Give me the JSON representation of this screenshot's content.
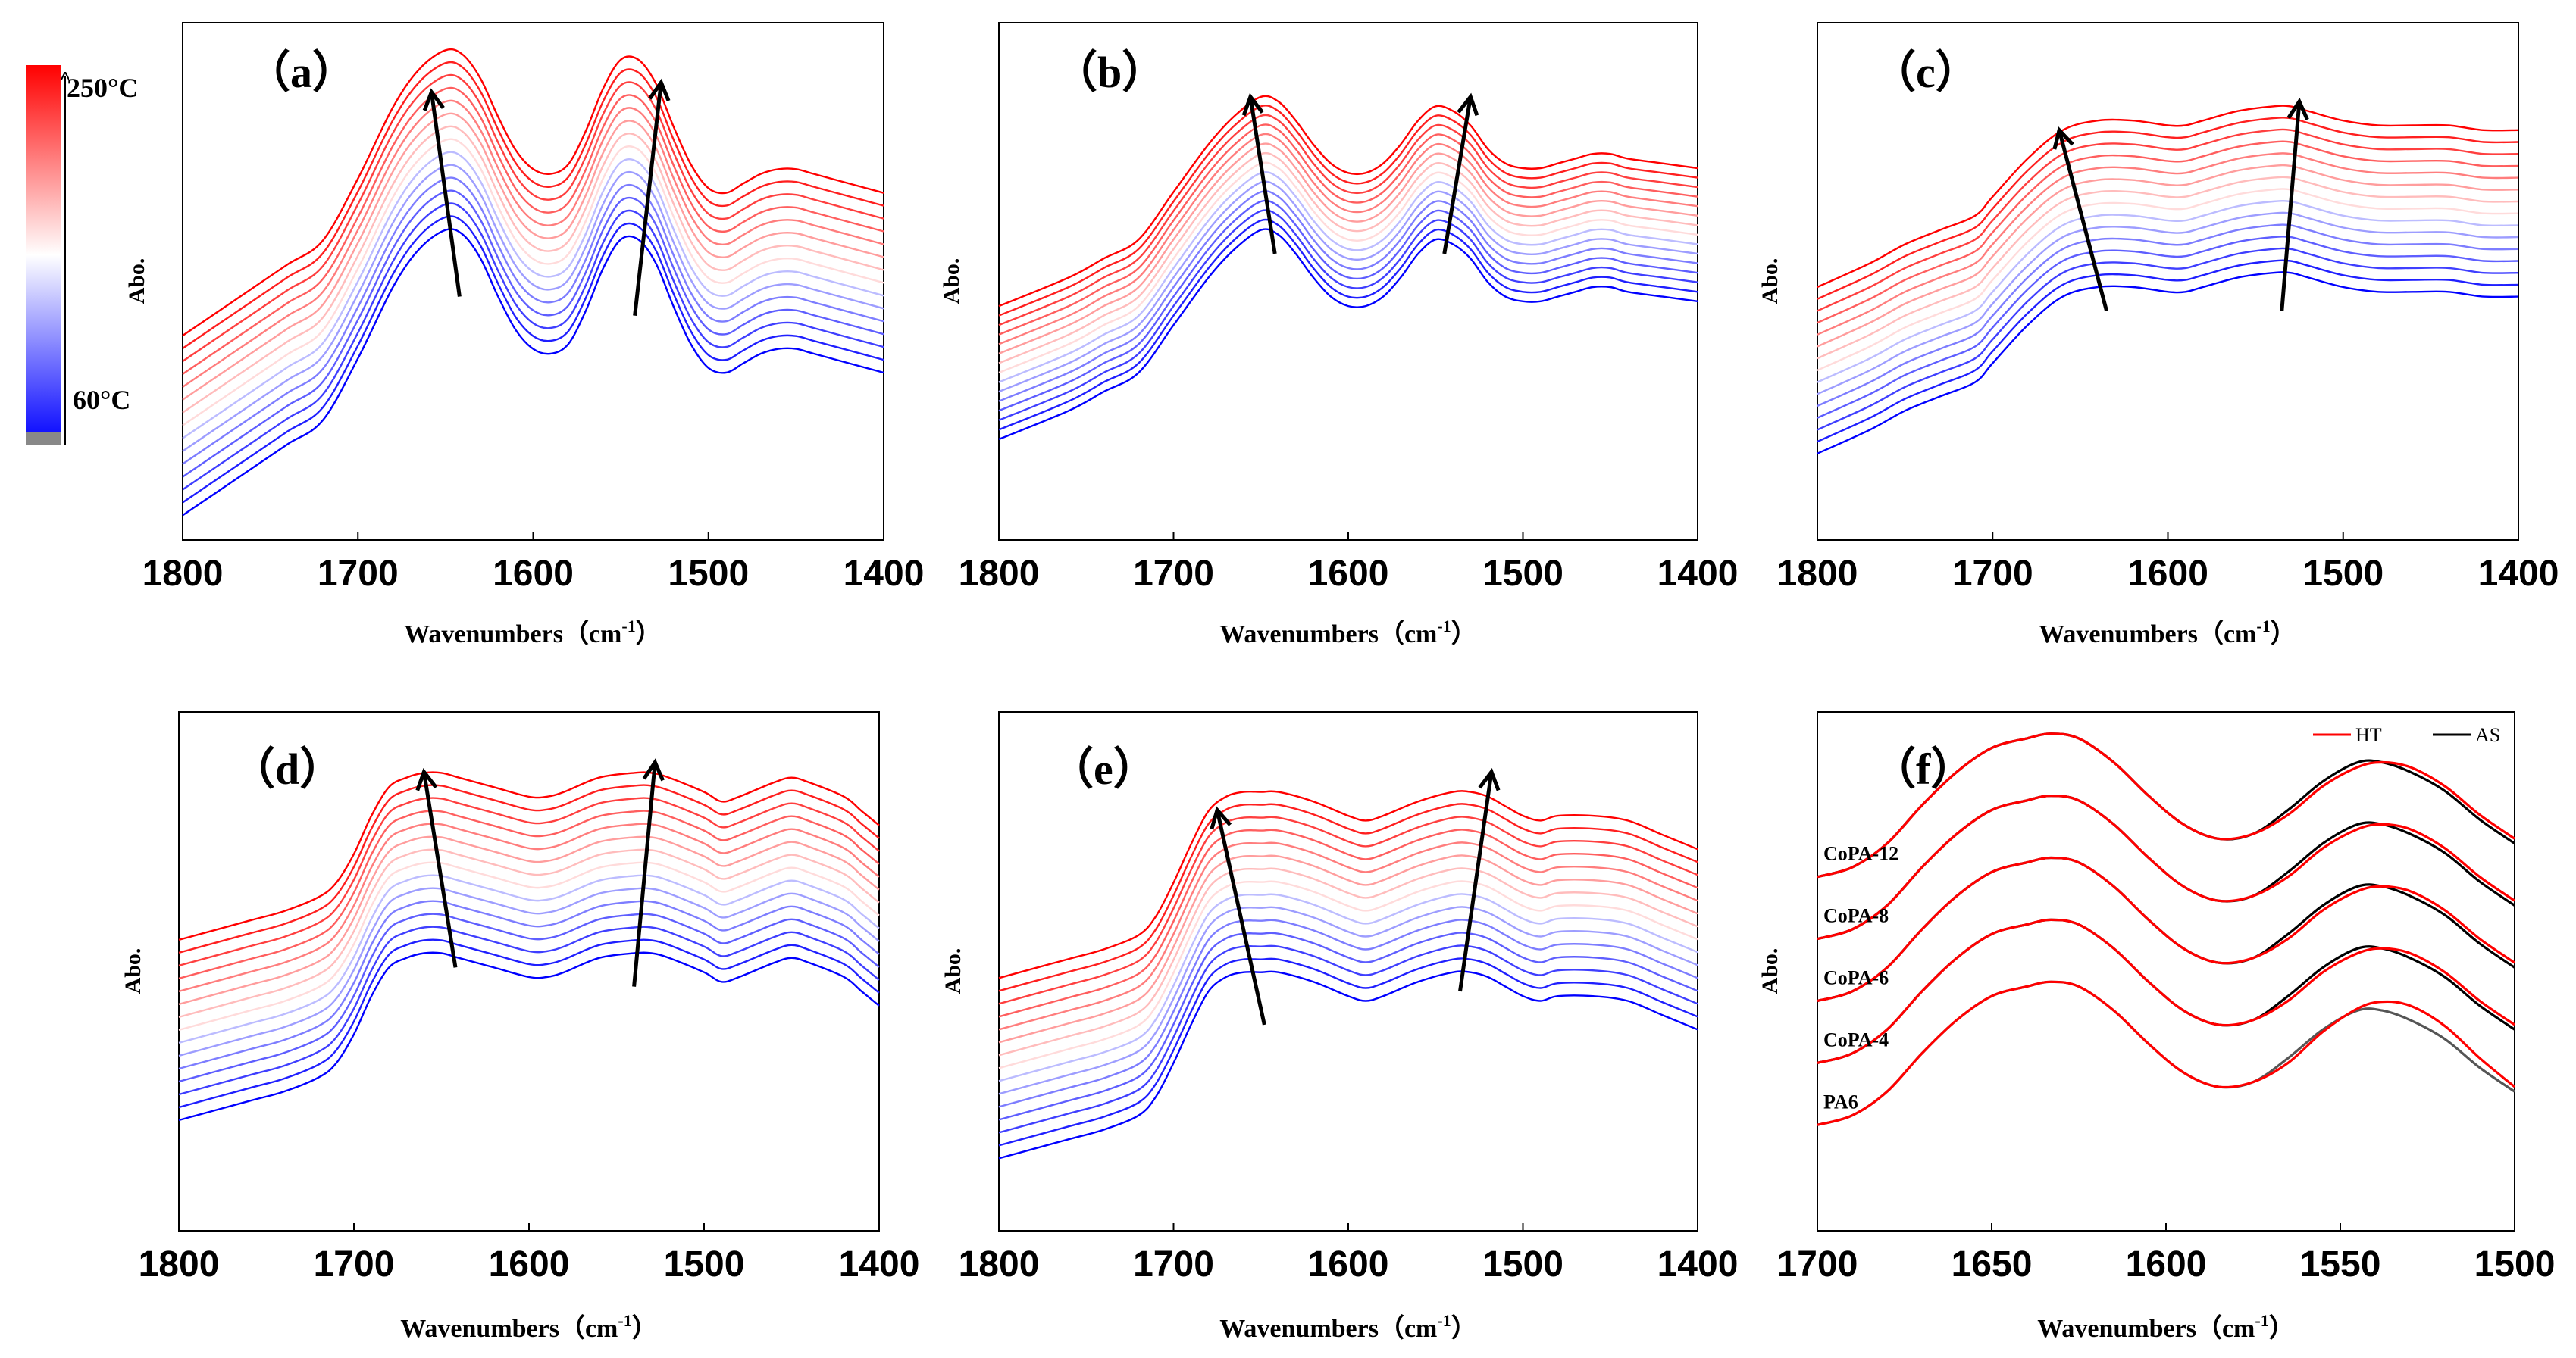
{
  "figure": {
    "colorbar": {
      "top_label": "250°C",
      "bottom_label": "60°C",
      "top_color": "#ff0000",
      "mid_color": "#ffffff",
      "bottom_color": "#0000ff"
    }
  },
  "chart_data": [
    {
      "panel": "a",
      "panel_label": "（a）",
      "type": "line",
      "xlabel": "Wavenumbers（cm",
      "xlabel_sup": "-1",
      "xlabel_end": "）",
      "ylabel": "Abo.",
      "xlim": [
        1800,
        1400
      ],
      "ylim": [
        0,
        1
      ],
      "xticks": [
        1800,
        1700,
        1600,
        1500,
        1400
      ],
      "xtick_labels": [
        "1800",
        "1700",
        "1600",
        "1500",
        "1400"
      ],
      "series_count": 15,
      "series_spacing": 0.027,
      "base_curve": {
        "x": [
          1800,
          1760,
          1740,
          1720,
          1700,
          1680,
          1665,
          1650,
          1640,
          1630,
          1620,
          1610,
          1600,
          1590,
          1580,
          1570,
          1560,
          1550,
          1540,
          1530,
          1520,
          1510,
          1500,
          1490,
          1480,
          1470,
          1460,
          1450,
          1440,
          1420,
          1400
        ],
        "y": [
          0.02,
          0.12,
          0.17,
          0.22,
          0.35,
          0.5,
          0.58,
          0.62,
          0.61,
          0.56,
          0.48,
          0.41,
          0.37,
          0.36,
          0.38,
          0.45,
          0.54,
          0.6,
          0.6,
          0.55,
          0.46,
          0.38,
          0.33,
          0.32,
          0.34,
          0.36,
          0.37,
          0.37,
          0.36,
          0.34,
          0.32
        ]
      },
      "arrows": [
        {
          "from": [
            1642,
            0.48
          ],
          "to": [
            1658,
            0.91
          ]
        },
        {
          "from": [
            1542,
            0.44
          ],
          "to": [
            1527,
            0.93
          ]
        }
      ],
      "colors": {
        "start": "#0000ff",
        "mid": "#ffffff",
        "end": "#ff0000"
      }
    },
    {
      "panel": "b",
      "panel_label": "（b）",
      "type": "line",
      "xlabel": "Wavenumbers（cm",
      "xlabel_sup": "-1",
      "xlabel_end": "）",
      "ylabel": "Abo.",
      "xlim": [
        1800,
        1400
      ],
      "ylim": [
        0,
        1
      ],
      "xticks": [
        1800,
        1700,
        1600,
        1500,
        1400
      ],
      "xtick_labels": [
        "1800",
        "1700",
        "1600",
        "1500",
        "1400"
      ],
      "series_count": 15,
      "series_spacing": 0.02,
      "base_curve": {
        "x": [
          1800,
          1760,
          1740,
          1720,
          1700,
          1680,
          1665,
          1650,
          1640,
          1630,
          1620,
          1610,
          1600,
          1590,
          1580,
          1570,
          1560,
          1550,
          1540,
          1530,
          1520,
          1510,
          1500,
          1490,
          1480,
          1470,
          1460,
          1450,
          1440,
          1420,
          1400
        ],
        "y": [
          0.18,
          0.24,
          0.28,
          0.32,
          0.42,
          0.52,
          0.58,
          0.62,
          0.61,
          0.57,
          0.52,
          0.48,
          0.46,
          0.46,
          0.48,
          0.52,
          0.57,
          0.6,
          0.59,
          0.56,
          0.51,
          0.48,
          0.47,
          0.47,
          0.48,
          0.49,
          0.5,
          0.5,
          0.49,
          0.48,
          0.47
        ]
      },
      "arrows": [
        {
          "from": [
            1642,
            0.57
          ],
          "to": [
            1656,
            0.9
          ]
        },
        {
          "from": [
            1545,
            0.57
          ],
          "to": [
            1530,
            0.9
          ]
        }
      ],
      "colors": {
        "start": "#0000ff",
        "mid": "#ffffff",
        "end": "#ff0000"
      }
    },
    {
      "panel": "c",
      "panel_label": "（c）",
      "type": "line",
      "xlabel": "Wavenumbers（cm",
      "xlabel_sup": "-1",
      "xlabel_end": "）",
      "ylabel": "Abo.",
      "xlim": [
        1800,
        1400
      ],
      "ylim": [
        0,
        1
      ],
      "xticks": [
        1800,
        1700,
        1600,
        1500,
        1400
      ],
      "xtick_labels": [
        "1800",
        "1700",
        "1600",
        "1500",
        "1400"
      ],
      "series_count": 15,
      "series_spacing": 0.025,
      "base_curve": {
        "x": [
          1800,
          1770,
          1750,
          1730,
          1710,
          1700,
          1680,
          1660,
          1640,
          1620,
          1600,
          1590,
          1580,
          1560,
          1540,
          1530,
          1520,
          1500,
          1480,
          1460,
          1440,
          1420,
          1400
        ],
        "y": [
          0.15,
          0.2,
          0.24,
          0.27,
          0.3,
          0.34,
          0.42,
          0.48,
          0.5,
          0.5,
          0.49,
          0.49,
          0.5,
          0.52,
          0.53,
          0.53,
          0.52,
          0.5,
          0.49,
          0.49,
          0.49,
          0.48,
          0.48
        ]
      },
      "arrows": [
        {
          "from": [
            1635,
            0.45
          ],
          "to": [
            1662,
            0.83
          ]
        },
        {
          "from": [
            1535,
            0.45
          ],
          "to": [
            1525,
            0.89
          ]
        }
      ],
      "colors": {
        "start": "#0000ff",
        "mid": "#ffffff",
        "end": "#ff0000"
      }
    },
    {
      "panel": "d",
      "panel_label": "（d）",
      "type": "line",
      "xlabel": "Wavenumbers（cm",
      "xlabel_sup": "-1",
      "xlabel_end": "）",
      "ylabel": "Abo.",
      "xlim": [
        1800,
        1400
      ],
      "ylim": [
        0,
        1
      ],
      "xticks": [
        1800,
        1700,
        1600,
        1500,
        1400
      ],
      "xtick_labels": [
        "1800",
        "1700",
        "1600",
        "1500",
        "1400"
      ],
      "series_count": 15,
      "series_spacing": 0.027,
      "base_curve": {
        "x": [
          1800,
          1760,
          1740,
          1720,
          1710,
          1700,
          1690,
          1680,
          1670,
          1660,
          1650,
          1640,
          1620,
          1600,
          1590,
          1580,
          1560,
          1540,
          1530,
          1520,
          1500,
          1490,
          1480,
          1460,
          1450,
          1440,
          1420,
          1410,
          1400
        ],
        "y": [
          0.2,
          0.24,
          0.26,
          0.29,
          0.32,
          0.38,
          0.46,
          0.52,
          0.54,
          0.55,
          0.55,
          0.54,
          0.52,
          0.5,
          0.5,
          0.51,
          0.54,
          0.55,
          0.55,
          0.54,
          0.51,
          0.49,
          0.5,
          0.53,
          0.54,
          0.53,
          0.5,
          0.47,
          0.44
        ]
      },
      "arrows": [
        {
          "from": [
            1642,
            0.52
          ],
          "to": [
            1660,
            0.93
          ]
        },
        {
          "from": [
            1540,
            0.48
          ],
          "to": [
            1528,
            0.95
          ]
        }
      ],
      "colors": {
        "start": "#0000ff",
        "mid": "#ffffff",
        "end": "#ff0000"
      }
    },
    {
      "panel": "e",
      "panel_label": "（e）",
      "type": "line",
      "xlabel": "Wavenumbers（cm",
      "xlabel_sup": "-1",
      "xlabel_end": "）",
      "ylabel": "Abo.",
      "xlim": [
        1800,
        1400
      ],
      "ylim": [
        0,
        1
      ],
      "xticks": [
        1800,
        1700,
        1600,
        1500,
        1400
      ],
      "xtick_labels": [
        "1800",
        "1700",
        "1600",
        "1500",
        "1400"
      ],
      "series_count": 15,
      "series_spacing": 0.027,
      "base_curve": {
        "x": [
          1800,
          1760,
          1740,
          1720,
          1710,
          1700,
          1690,
          1680,
          1670,
          1660,
          1650,
          1640,
          1620,
          1600,
          1590,
          1580,
          1560,
          1540,
          1530,
          1520,
          1510,
          1500,
          1490,
          1480,
          1460,
          1440,
          1420,
          1400
        ],
        "y": [
          0.12,
          0.16,
          0.18,
          0.21,
          0.25,
          0.32,
          0.4,
          0.47,
          0.5,
          0.51,
          0.51,
          0.51,
          0.49,
          0.46,
          0.45,
          0.46,
          0.49,
          0.51,
          0.51,
          0.5,
          0.48,
          0.46,
          0.45,
          0.46,
          0.46,
          0.45,
          0.42,
          0.39
        ]
      },
      "arrows": [
        {
          "from": [
            1648,
            0.4
          ],
          "to": [
            1675,
            0.85
          ]
        },
        {
          "from": [
            1536,
            0.47
          ],
          "to": [
            1518,
            0.93
          ]
        }
      ],
      "colors": {
        "start": "#0000ff",
        "mid": "#ffffff",
        "end": "#ff0000"
      }
    },
    {
      "panel": "f",
      "panel_label": "（f）",
      "type": "line",
      "xlabel": "Wavenumbers（cm",
      "xlabel_sup": "-1",
      "xlabel_end": "）",
      "ylabel": "Abo.",
      "xlim": [
        1700,
        1500
      ],
      "ylim": [
        0,
        1
      ],
      "xticks": [
        1700,
        1650,
        1600,
        1550,
        1500
      ],
      "xtick_labels": [
        "1700",
        "1650",
        "1600",
        "1550",
        "1500"
      ],
      "legend": [
        {
          "name": "HT",
          "color": "#ff0000"
        },
        {
          "name": "AS",
          "color": "#000000"
        }
      ],
      "legend_position": "top-right",
      "samples": [
        "CoPA-12",
        "CoPA-8",
        "CoPA-6",
        "CoPA-4",
        "PA6"
      ],
      "sample_offsets": [
        0.46,
        0.33,
        0.2,
        0.07,
        -0.06
      ],
      "series": [
        {
          "name": "HT",
          "color": "#ff0000",
          "x": [
            1700,
            1690,
            1680,
            1670,
            1660,
            1650,
            1640,
            1633,
            1625,
            1615,
            1605,
            1595,
            1585,
            1575,
            1565,
            1555,
            1545,
            1538,
            1530,
            1520,
            1510,
            1500
          ],
          "y": [
            0.25,
            0.27,
            0.32,
            0.4,
            0.47,
            0.52,
            0.54,
            0.55,
            0.54,
            0.49,
            0.42,
            0.36,
            0.33,
            0.34,
            0.38,
            0.44,
            0.48,
            0.49,
            0.48,
            0.44,
            0.38,
            0.33
          ]
        },
        {
          "name": "AS",
          "color": "#000000",
          "x": [
            1700,
            1690,
            1680,
            1670,
            1660,
            1650,
            1640,
            1633,
            1625,
            1615,
            1605,
            1595,
            1585,
            1575,
            1565,
            1555,
            1545,
            1538,
            1530,
            1520,
            1510,
            1500
          ],
          "y": [
            0.25,
            0.27,
            0.32,
            0.4,
            0.47,
            0.52,
            0.54,
            0.55,
            0.54,
            0.49,
            0.42,
            0.36,
            0.33,
            0.34,
            0.39,
            0.45,
            0.49,
            0.49,
            0.47,
            0.43,
            0.37,
            0.32
          ]
        }
      ]
    }
  ]
}
